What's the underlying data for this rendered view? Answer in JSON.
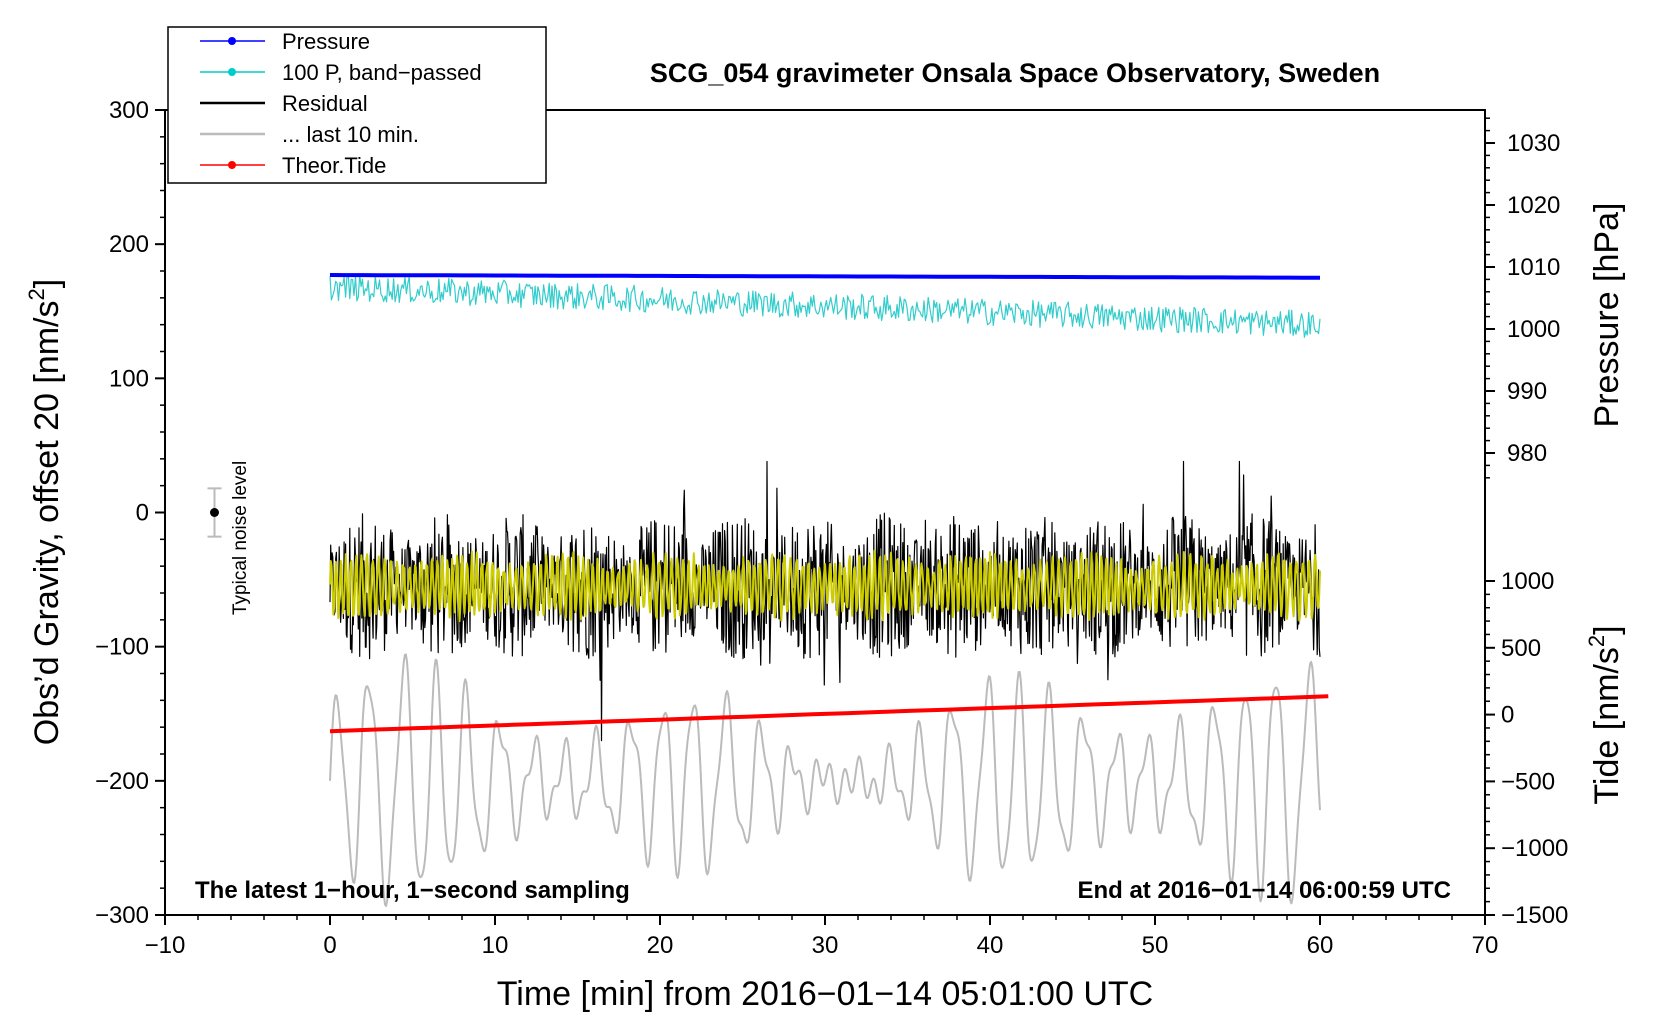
{
  "chart_data": {
    "type": "line",
    "title": "SCG_054 gravimeter Onsala Space Observatory, Sweden",
    "xlabel": "Time [min] from 2016−01−14 05:01:00 UTC",
    "ylabel_left_main": "Obs’d Gravity, offset 20 [nm/s",
    "ylabel_left_sup": "2",
    "ylabel_left_end": "]",
    "ylabel_right_pressure": "Pressure [hPa]",
    "ylabel_right_tide_main": "Tide [nm/s",
    "ylabel_right_tide_sup": "2",
    "ylabel_right_tide_end": "]",
    "xlim": [
      -10,
      70
    ],
    "ylim": [
      -300,
      300
    ],
    "x_ticks": [
      "−10",
      "0",
      "10",
      "20",
      "30",
      "40",
      "50",
      "60",
      "70"
    ],
    "x_tick_values": [
      -10,
      0,
      10,
      20,
      30,
      40,
      50,
      60,
      70
    ],
    "y_ticks": [
      "−300",
      "−200",
      "−100",
      "0",
      "100",
      "200",
      "300"
    ],
    "y_tick_values": [
      -300,
      -200,
      -100,
      0,
      100,
      200,
      300
    ],
    "pressure_ticks": [
      "980",
      "990",
      "1000",
      "1010",
      "1020",
      "1030"
    ],
    "pressure_tick_values": [
      980,
      990,
      1000,
      1010,
      1020,
      1030
    ],
    "tide_ticks": [
      "−1500",
      "−1000",
      "−500",
      "0",
      "500",
      "1000"
    ],
    "tide_tick_values": [
      -1500,
      -1000,
      -500,
      0,
      500,
      1000
    ],
    "legend": [
      {
        "label": "Pressure",
        "color": "#0000ff",
        "marker": true
      },
      {
        "label": "100 P, band−passed",
        "color": "#00cccc",
        "marker": true
      },
      {
        "label": "Residual",
        "color": "#000000",
        "marker": false
      },
      {
        "label": "... last 10 min.",
        "color": "#bbbbbb",
        "marker": false
      },
      {
        "label": "Theor.Tide",
        "color": "#ff0000",
        "marker": true
      }
    ],
    "note_left": "The latest 1−hour, 1−second sampling",
    "note_right": "End at 2016−01−14 06:00:59 UTC",
    "noise_label": "Typical noise level",
    "noise_bar": {
      "x": -7,
      "center": 0,
      "half_range": 18
    },
    "series": [
      {
        "name": "Pressure",
        "color": "#0000ff",
        "x_range": [
          0,
          60
        ],
        "start": 177,
        "end": 175
      },
      {
        "name": "100 P, band−passed",
        "color": "#33cccc",
        "x_range": [
          0,
          60
        ],
        "start": 168,
        "end": 140,
        "amplitude": 10
      },
      {
        "name": "Residual",
        "color": "#000000",
        "x_range": [
          0,
          60
        ],
        "center": -55,
        "amplitude": 55
      },
      {
        "name": "Residual smoothed",
        "color": "#cccc00",
        "x_range": [
          0,
          60
        ],
        "center": -55,
        "amplitude": 22
      },
      {
        "name": "... last 10 min.",
        "color": "#bbbbbb",
        "x_range": [
          0,
          60
        ],
        "center": -200,
        "amplitude": 45
      },
      {
        "name": "Theor.Tide",
        "color": "#ff0000",
        "x_range": [
          0,
          60.5
        ],
        "start": -163,
        "end": -137
      }
    ]
  }
}
